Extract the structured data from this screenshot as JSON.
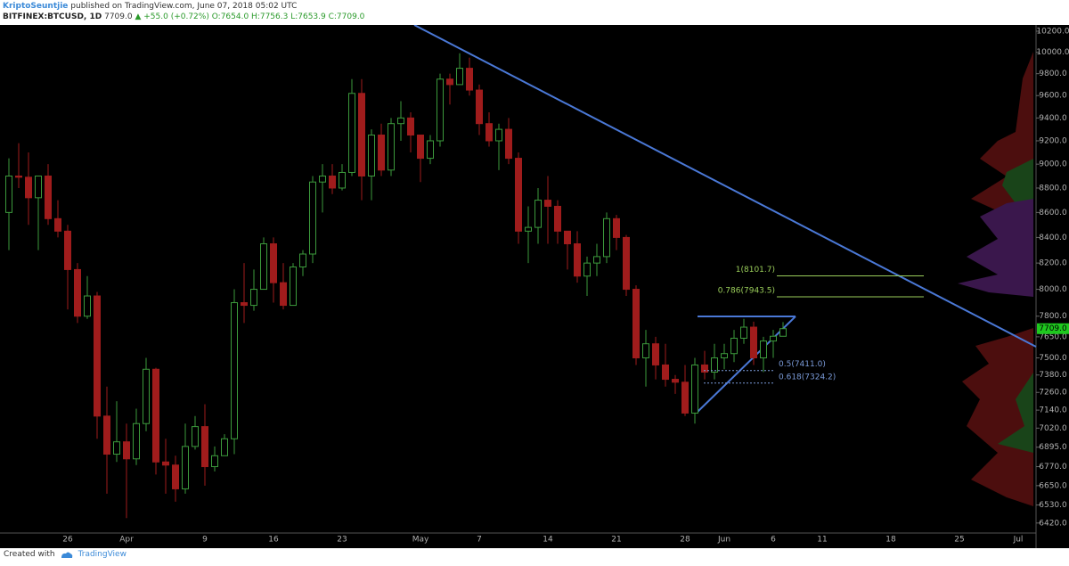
{
  "header": {
    "publisher": "KriptoSeuntjie",
    "published": "published on TradingView.com, June 07, 2018 05:02 UTC",
    "symbol": "BITFINEX:BTCUSD, 1D",
    "price": "7709.0",
    "change": "▲ +55.0 (+0.72%)",
    "ohlc": "O:7654.0 H:7756.3 L:7653.9 C:7709.0"
  },
  "footer": {
    "created": "Created with",
    "brand": "TradingView"
  },
  "chart_data": {
    "type": "candlestick",
    "log_scale": true,
    "up_color": "#3c9a3c",
    "down_color": "#a01c1c",
    "categories": [
      null,
      null,
      null,
      null,
      null,
      null,
      "26",
      null,
      null,
      null,
      null,
      null,
      "Apr",
      null,
      null,
      null,
      null,
      null,
      null,
      null,
      "9",
      null,
      null,
      null,
      null,
      null,
      null,
      "16",
      null,
      null,
      null,
      null,
      null,
      null,
      "23",
      null,
      null,
      null,
      null,
      null,
      null,
      null,
      "May",
      null,
      null,
      null,
      null,
      null,
      "7",
      null,
      null,
      null,
      null,
      null,
      null,
      "14",
      null,
      null,
      null,
      null,
      null,
      null,
      "21",
      null,
      null,
      null,
      null,
      null,
      null,
      "28",
      null,
      null,
      null,
      "Jun",
      null,
      null,
      null,
      null,
      "6",
      null,
      null,
      null,
      null,
      "11",
      null,
      null,
      null,
      null,
      null,
      null,
      "18",
      null,
      null,
      null,
      null,
      null,
      null,
      "25",
      null,
      null,
      null,
      null,
      null,
      "Jul",
      null
    ],
    "open": [
      8600,
      8900,
      8890,
      8720,
      8900,
      8550,
      8450,
      8150,
      7800,
      7950,
      7100,
      6850,
      6930,
      6820,
      7050,
      7420,
      6800,
      6780,
      6630,
      6900,
      7030,
      6770,
      6840,
      6950,
      7900,
      7880,
      8000,
      8350,
      8050,
      7880,
      8170,
      8270,
      8850,
      8900,
      8800,
      8930,
      9620,
      8900,
      9250,
      8950,
      9350,
      9400,
      9250,
      9050,
      9200,
      9750,
      9700,
      9850,
      9650,
      9350,
      9200,
      9300,
      9050,
      8450,
      8480,
      8700,
      8650,
      8450,
      8350,
      8100,
      8200,
      8250,
      8550,
      8400,
      8000,
      7500,
      7600,
      7450,
      7350,
      7330,
      7120,
      7450,
      7400,
      7500,
      7530,
      7640,
      7720,
      7500,
      7620,
      7654,
      null,
      null,
      null,
      null,
      null,
      null,
      null,
      null,
      null,
      null,
      null,
      null,
      null,
      null,
      null,
      null,
      null,
      null,
      null,
      null,
      null,
      null,
      null,
      null,
      null
    ],
    "high": [
      9050,
      9180,
      9100,
      8900,
      9000,
      8700,
      8500,
      8200,
      8100,
      7980,
      7300,
      7200,
      7050,
      7150,
      7500,
      7430,
      6950,
      6840,
      7050,
      7100,
      7180,
      6900,
      6980,
      8000,
      8200,
      8150,
      8400,
      8400,
      8200,
      8200,
      8300,
      8900,
      9000,
      9000,
      9000,
      9750,
      9750,
      9300,
      9350,
      9400,
      9550,
      9450,
      9250,
      9250,
      9800,
      9800,
      9990,
      9950,
      9700,
      9450,
      9350,
      9400,
      9100,
      8650,
      8800,
      8900,
      8700,
      8450,
      8450,
      8250,
      8350,
      8600,
      8580,
      8420,
      8030,
      7700,
      7650,
      7600,
      7380,
      7450,
      7500,
      7550,
      7600,
      7600,
      7700,
      7780,
      7760,
      7650,
      7700,
      7756.3,
      null,
      null,
      null,
      null,
      null,
      null,
      null,
      null,
      null,
      null,
      null,
      null,
      null,
      null,
      null,
      null,
      null,
      null,
      null,
      null,
      null,
      null,
      null,
      null,
      null
    ],
    "low": [
      8300,
      8800,
      8500,
      8300,
      8500,
      8400,
      7850,
      7750,
      7780,
      6950,
      6600,
      6800,
      6450,
      6780,
      7000,
      6720,
      6600,
      6550,
      6600,
      6880,
      6650,
      6740,
      6840,
      6850,
      7750,
      7840,
      8000,
      7900,
      7850,
      7880,
      8100,
      8200,
      8600,
      8750,
      8780,
      8900,
      8700,
      8700,
      8900,
      8900,
      9200,
      9100,
      8850,
      9000,
      9150,
      9520,
      9700,
      9600,
      9250,
      9150,
      8950,
      9000,
      8350,
      8200,
      8350,
      8350,
      8350,
      8150,
      8050,
      7950,
      8100,
      8200,
      8300,
      7950,
      7450,
      7300,
      7350,
      7300,
      7250,
      7100,
      7050,
      7350,
      7350,
      7420,
      7470,
      7600,
      7450,
      7400,
      7500,
      7653.9,
      null,
      null,
      null,
      null,
      null,
      null,
      null,
      null,
      null,
      null,
      null,
      null,
      null,
      null,
      null,
      null,
      null,
      null,
      null,
      null,
      null,
      null,
      null,
      null,
      null
    ],
    "close": [
      8900,
      8890,
      8720,
      8900,
      8550,
      8450,
      8150,
      7800,
      7950,
      7100,
      6850,
      6930,
      6820,
      7050,
      7420,
      6800,
      6780,
      6630,
      6900,
      7030,
      6770,
      6840,
      6950,
      7900,
      7880,
      8000,
      8350,
      8050,
      7880,
      8170,
      8270,
      8850,
      8900,
      8800,
      8930,
      9620,
      8900,
      9250,
      8950,
      9350,
      9400,
      9250,
      9050,
      9200,
      9750,
      9700,
      9850,
      9650,
      9350,
      9200,
      9300,
      9050,
      8450,
      8480,
      8700,
      8650,
      8450,
      8350,
      8100,
      8200,
      8250,
      8550,
      8400,
      8000,
      7500,
      7600,
      7450,
      7350,
      7330,
      7120,
      7450,
      7400,
      7500,
      7530,
      7640,
      7720,
      7500,
      7620,
      7654,
      7709,
      null,
      null,
      null,
      null,
      null,
      null,
      null,
      null,
      null,
      null,
      null,
      null,
      null,
      null,
      null,
      null,
      null,
      null,
      null,
      null,
      null,
      null,
      null,
      null,
      null
    ],
    "ylim": [
      6360,
      10260
    ],
    "yticks": [
      {
        "value": 10200,
        "label": "10200.0"
      },
      {
        "value": 10000,
        "label": "10000.0"
      },
      {
        "value": 9800,
        "label": "9800.0"
      },
      {
        "value": 9600,
        "label": "9600.0"
      },
      {
        "value": 9400,
        "label": "9400.0"
      },
      {
        "value": 9200,
        "label": "9200.0"
      },
      {
        "value": 9000,
        "label": "9000.0"
      },
      {
        "value": 8800,
        "label": "8800.0"
      },
      {
        "value": 8600,
        "label": "8600.0"
      },
      {
        "value": 8400,
        "label": "8400.0"
      },
      {
        "value": 8200,
        "label": "8200.0"
      },
      {
        "value": 8000,
        "label": "8000.0"
      },
      {
        "value": 7800,
        "label": "7800.0"
      },
      {
        "value": 7650,
        "label": "7650.0"
      },
      {
        "value": 7500,
        "label": "7500.0"
      },
      {
        "value": 7380,
        "label": "7380.0"
      },
      {
        "value": 7260,
        "label": "7260.0"
      },
      {
        "value": 7140,
        "label": "7140.0"
      },
      {
        "value": 7020,
        "label": "7020.0"
      },
      {
        "value": 6895,
        "label": "6895.0"
      },
      {
        "value": 6770,
        "label": "6770.0"
      },
      {
        "value": 6650,
        "label": "6650.0"
      },
      {
        "value": 6530,
        "label": "6530.0"
      },
      {
        "value": 6420,
        "label": "6420.0"
      }
    ],
    "price_tag": {
      "value": 7709,
      "label": "7709.0",
      "color": "#1ec81e"
    },
    "levels": [
      {
        "label": "1(8101.7)",
        "value": 8101.7,
        "color": "#9acd5a"
      },
      {
        "label": "0.786(7943.5)",
        "value": 7943.5,
        "color": "#9acd5a"
      },
      {
        "label": "0.5(7411.0)",
        "value": 7411.0,
        "color": "#7a9ad8"
      },
      {
        "label": "0.618(7324.2)",
        "value": 7324.2,
        "color": "#7a9ad8"
      }
    ]
  }
}
